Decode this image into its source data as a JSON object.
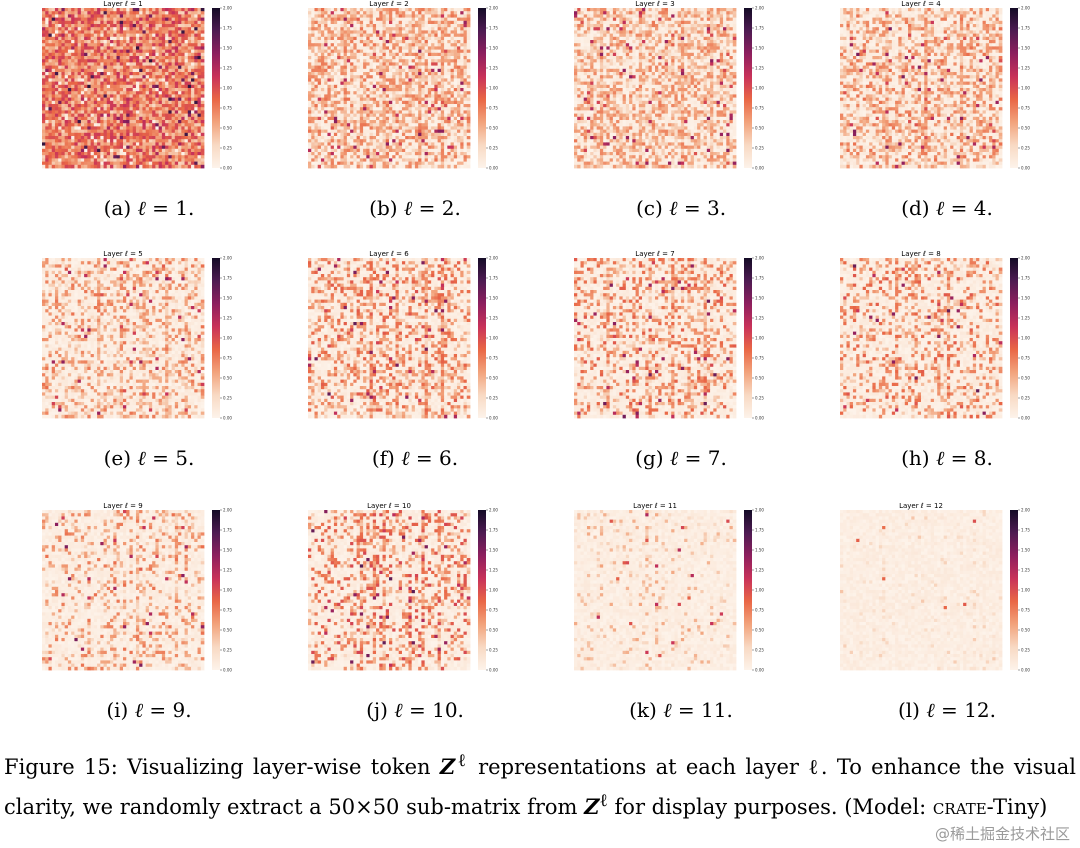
{
  "figure": {
    "panels": [
      {
        "id": "a",
        "label": "(a)",
        "layer": 1,
        "title": "Layer ℓ = 1",
        "density": 0.95,
        "intensity": 0.45,
        "cols": [
          6,
          14,
          23,
          31,
          39,
          45
        ]
      },
      {
        "id": "b",
        "label": "(b)",
        "layer": 2,
        "title": "Layer ℓ = 2",
        "density": 0.6,
        "intensity": 0.3,
        "cols": [
          11,
          23,
          34,
          41
        ]
      },
      {
        "id": "c",
        "label": "(c)",
        "layer": 3,
        "title": "Layer ℓ = 3",
        "density": 0.55,
        "intensity": 0.28,
        "cols": [
          8,
          20,
          33,
          42
        ]
      },
      {
        "id": "d",
        "label": "(d)",
        "layer": 4,
        "title": "Layer ℓ = 4",
        "density": 0.5,
        "intensity": 0.3,
        "cols": [
          14,
          26,
          37
        ]
      },
      {
        "id": "e",
        "label": "(e)",
        "layer": 5,
        "title": "Layer ℓ = 5",
        "density": 0.35,
        "intensity": 0.3,
        "cols": [
          17,
          24,
          31,
          38,
          44
        ]
      },
      {
        "id": "f",
        "label": "(f)",
        "layer": 6,
        "title": "Layer ℓ = 6",
        "density": 0.4,
        "intensity": 0.35,
        "cols": [
          19,
          27,
          36,
          41
        ]
      },
      {
        "id": "g",
        "label": "(g)",
        "layer": 7,
        "title": "Layer ℓ = 7",
        "density": 0.35,
        "intensity": 0.35,
        "cols": [
          10,
          23,
          30,
          35,
          40
        ]
      },
      {
        "id": "h",
        "label": "(h)",
        "layer": 8,
        "title": "Layer ℓ = 8",
        "density": 0.3,
        "intensity": 0.35,
        "cols": [
          17,
          23,
          30,
          33
        ]
      },
      {
        "id": "i",
        "label": "(i)",
        "layer": 9,
        "title": "Layer ℓ = 9",
        "density": 0.25,
        "intensity": 0.3,
        "cols": [
          14,
          22,
          29,
          41,
          44
        ]
      },
      {
        "id": "j",
        "label": "(j)",
        "layer": 10,
        "title": "Layer ℓ = 10",
        "density": 0.3,
        "intensity": 0.4,
        "cols": [
          16,
          20,
          23,
          31,
          35,
          40
        ]
      },
      {
        "id": "k",
        "label": "(k)",
        "layer": 11,
        "title": "Layer ℓ = 11",
        "density": 0.1,
        "intensity": 0.2,
        "cols": [
          22,
          25
        ]
      },
      {
        "id": "l",
        "label": "(l)",
        "layer": 12,
        "title": "Layer ℓ = 12",
        "density": 0.04,
        "intensity": 0.12,
        "cols": [
          13,
          41,
          44
        ]
      }
    ],
    "colorbar_ticks": [
      "2.00",
      "1.75",
      "1.50",
      "1.25",
      "1.00",
      "0.75",
      "0.50",
      "0.25",
      "0.00"
    ],
    "colormap": [
      "#fdf3ea",
      "#f8d9c3",
      "#f2a37c",
      "#e96746",
      "#c8325a",
      "#8e1f5e",
      "#4e1b52",
      "#140b26"
    ]
  },
  "caption": {
    "prefix": "Figure 15:  Visualizing layer-wise token ",
    "symbol": "Z",
    "sup": "ℓ",
    "mid": " representations at each layer ℓ.  To enhance the visual clarity, we randomly extract a 50×50 sub-matrix from ",
    "mid2": " for display purposes. (Model: ",
    "model": "crate",
    "suffix": "-Tiny)"
  },
  "watermark": "@稀土掘金技术社区"
}
